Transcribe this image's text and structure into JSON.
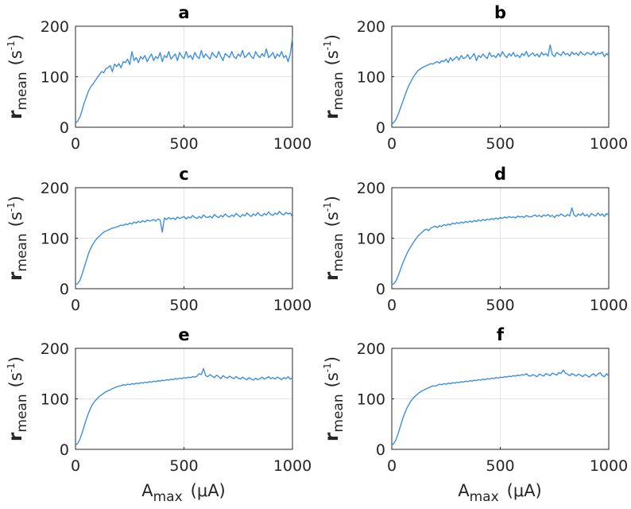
{
  "figure": {
    "xlabel": {
      "main": "A",
      "sub": "max",
      "unit": "(μA)"
    },
    "ylabel": {
      "main": "r",
      "sub": "mean",
      "open": "(s",
      "sup": "-1",
      "close": ")"
    }
  },
  "chart_data": [
    {
      "type": "line",
      "panel": "a",
      "title": "a",
      "xlim": [
        0,
        1000
      ],
      "ylim": [
        0,
        200
      ],
      "xticks": [
        0,
        500,
        1000
      ],
      "yticks": [
        0,
        100,
        200
      ],
      "grid": true,
      "color": "#3b8fe0",
      "x": [
        0,
        10,
        20,
        30,
        40,
        50,
        60,
        70,
        80,
        90,
        100,
        110,
        120,
        130,
        140,
        150,
        160,
        170,
        180,
        190,
        200,
        210,
        220,
        230,
        240,
        250,
        260,
        270,
        280,
        290,
        300,
        310,
        320,
        330,
        340,
        350,
        360,
        370,
        380,
        390,
        400,
        410,
        420,
        430,
        440,
        450,
        460,
        470,
        480,
        490,
        500,
        510,
        520,
        530,
        540,
        550,
        560,
        570,
        580,
        590,
        600,
        610,
        620,
        630,
        640,
        650,
        660,
        670,
        680,
        690,
        700,
        710,
        720,
        730,
        740,
        750,
        760,
        770,
        780,
        790,
        800,
        810,
        820,
        830,
        840,
        850,
        860,
        870,
        880,
        890,
        900,
        910,
        920,
        930,
        940,
        950,
        960,
        970,
        980,
        990,
        1000
      ],
      "values": [
        8,
        12,
        20,
        33,
        48,
        60,
        72,
        80,
        85,
        92,
        98,
        104,
        110,
        108,
        116,
        118,
        122,
        110,
        125,
        120,
        126,
        118,
        130,
        128,
        135,
        124,
        150,
        132,
        138,
        128,
        140,
        135,
        142,
        130,
        138,
        145,
        132,
        140,
        136,
        148,
        130,
        142,
        138,
        150,
        135,
        140,
        145,
        132,
        148,
        140,
        136,
        150,
        138,
        142,
        134,
        148,
        140,
        136,
        152,
        138,
        145,
        140,
        135,
        148,
        142,
        138,
        150,
        140,
        132,
        146,
        142,
        138,
        150,
        140,
        136,
        145,
        140,
        152,
        138,
        142,
        148,
        140,
        136,
        150,
        142,
        138,
        146,
        140,
        155,
        138,
        142,
        148,
        136,
        145,
        140,
        150,
        138,
        142,
        130,
        145,
        178
      ]
    },
    {
      "type": "line",
      "panel": "b",
      "title": "b",
      "xlim": [
        0,
        1000
      ],
      "ylim": [
        0,
        200
      ],
      "xticks": [
        0,
        500,
        1000
      ],
      "yticks": [
        0,
        100,
        200
      ],
      "grid": true,
      "color": "#3b8fe0",
      "x": [
        0,
        10,
        20,
        30,
        40,
        50,
        60,
        70,
        80,
        90,
        100,
        110,
        120,
        130,
        140,
        150,
        160,
        170,
        180,
        190,
        200,
        210,
        220,
        230,
        240,
        250,
        260,
        270,
        280,
        290,
        300,
        310,
        320,
        330,
        340,
        350,
        360,
        370,
        380,
        390,
        400,
        410,
        420,
        430,
        440,
        450,
        460,
        470,
        480,
        490,
        500,
        510,
        520,
        530,
        540,
        550,
        560,
        570,
        580,
        590,
        600,
        610,
        620,
        630,
        640,
        650,
        660,
        670,
        680,
        690,
        700,
        710,
        720,
        730,
        740,
        750,
        760,
        770,
        780,
        790,
        800,
        810,
        820,
        830,
        840,
        850,
        860,
        870,
        880,
        890,
        900,
        910,
        920,
        930,
        940,
        950,
        960,
        970,
        980,
        990,
        1000
      ],
      "values": [
        6,
        10,
        16,
        26,
        38,
        50,
        62,
        74,
        84,
        92,
        100,
        106,
        112,
        115,
        118,
        120,
        122,
        124,
        126,
        125,
        128,
        130,
        127,
        132,
        130,
        135,
        128,
        138,
        132,
        136,
        140,
        133,
        142,
        136,
        138,
        144,
        135,
        140,
        146,
        132,
        142,
        138,
        145,
        140,
        136,
        148,
        140,
        142,
        138,
        146,
        140,
        150,
        142,
        138,
        146,
        141,
        148,
        140,
        143,
        138,
        146,
        142,
        150,
        140,
        144,
        147,
        141,
        145,
        139,
        148,
        143,
        146,
        141,
        163,
        144,
        140,
        148,
        145,
        142,
        150,
        144,
        146,
        141,
        149,
        144,
        147,
        142,
        150,
        145,
        143,
        148,
        146,
        144,
        150,
        142,
        147,
        145,
        149,
        140,
        146,
        142
      ]
    },
    {
      "type": "line",
      "panel": "c",
      "title": "c",
      "xlim": [
        0,
        1000
      ],
      "ylim": [
        0,
        200
      ],
      "xticks": [
        0,
        500,
        1000
      ],
      "yticks": [
        0,
        100,
        200
      ],
      "grid": true,
      "color": "#3b8fe0",
      "x": [
        0,
        10,
        20,
        30,
        40,
        50,
        60,
        70,
        80,
        90,
        100,
        110,
        120,
        130,
        140,
        150,
        160,
        170,
        180,
        190,
        200,
        210,
        220,
        230,
        240,
        250,
        260,
        270,
        280,
        290,
        300,
        310,
        320,
        330,
        340,
        350,
        360,
        370,
        380,
        390,
        400,
        410,
        420,
        430,
        440,
        450,
        460,
        470,
        480,
        490,
        500,
        510,
        520,
        530,
        540,
        550,
        560,
        570,
        580,
        590,
        600,
        610,
        620,
        630,
        640,
        650,
        660,
        670,
        680,
        690,
        700,
        710,
        720,
        730,
        740,
        750,
        760,
        770,
        780,
        790,
        800,
        810,
        820,
        830,
        840,
        850,
        860,
        870,
        880,
        890,
        900,
        910,
        920,
        930,
        940,
        950,
        960,
        970,
        980,
        990,
        1000
      ],
      "values": [
        8,
        10,
        16,
        28,
        42,
        56,
        70,
        80,
        88,
        95,
        100,
        104,
        108,
        112,
        114,
        116,
        118,
        120,
        121,
        122,
        124,
        126,
        125,
        128,
        127,
        130,
        128,
        132,
        130,
        133,
        131,
        135,
        132,
        136,
        134,
        135,
        137,
        134,
        138,
        136,
        112,
        140,
        137,
        141,
        138,
        140,
        137,
        142,
        139,
        141,
        143,
        138,
        142,
        140,
        145,
        141,
        139,
        143,
        140,
        146,
        142,
        141,
        144,
        140,
        147,
        143,
        141,
        145,
        142,
        148,
        144,
        142,
        146,
        143,
        149,
        145,
        142,
        147,
        144,
        150,
        146,
        143,
        148,
        145,
        151,
        146,
        144,
        149,
        146,
        152,
        147,
        145,
        150,
        147,
        153,
        148,
        146,
        151,
        148,
        150,
        142
      ]
    },
    {
      "type": "line",
      "panel": "d",
      "title": "d",
      "xlim": [
        0,
        1000
      ],
      "ylim": [
        0,
        200
      ],
      "xticks": [
        0,
        500,
        1000
      ],
      "yticks": [
        0,
        100,
        200
      ],
      "grid": true,
      "color": "#3b8fe0",
      "x": [
        0,
        10,
        20,
        30,
        40,
        50,
        60,
        70,
        80,
        90,
        100,
        110,
        120,
        130,
        140,
        150,
        160,
        170,
        180,
        190,
        200,
        210,
        220,
        230,
        240,
        250,
        260,
        270,
        280,
        290,
        300,
        310,
        320,
        330,
        340,
        350,
        360,
        370,
        380,
        390,
        400,
        410,
        420,
        430,
        440,
        450,
        460,
        470,
        480,
        490,
        500,
        510,
        520,
        530,
        540,
        550,
        560,
        570,
        580,
        590,
        600,
        610,
        620,
        630,
        640,
        650,
        660,
        670,
        680,
        690,
        700,
        710,
        720,
        730,
        740,
        750,
        760,
        770,
        780,
        790,
        800,
        810,
        820,
        830,
        840,
        850,
        860,
        870,
        880,
        890,
        900,
        910,
        920,
        930,
        940,
        950,
        960,
        970,
        980,
        990,
        1000
      ],
      "values": [
        8,
        10,
        16,
        26,
        38,
        50,
        60,
        70,
        78,
        85,
        92,
        98,
        104,
        108,
        112,
        116,
        118,
        115,
        120,
        122,
        124,
        121,
        125,
        123,
        127,
        125,
        128,
        126,
        130,
        128,
        131,
        129,
        132,
        130,
        133,
        131,
        134,
        132,
        135,
        133,
        136,
        134,
        137,
        135,
        138,
        136,
        139,
        137,
        140,
        138,
        141,
        139,
        142,
        140,
        143,
        141,
        142,
        140,
        144,
        142,
        143,
        141,
        145,
        143,
        142,
        144,
        146,
        143,
        145,
        142,
        146,
        144,
        147,
        143,
        145,
        141,
        146,
        144,
        148,
        145,
        143,
        147,
        144,
        160,
        146,
        143,
        148,
        145,
        150,
        144,
        147,
        142,
        149,
        146,
        144,
        150,
        145,
        148,
        143,
        149,
        146
      ]
    },
    {
      "type": "line",
      "panel": "e",
      "title": "e",
      "xlim": [
        0,
        1000
      ],
      "ylim": [
        0,
        200
      ],
      "xticks": [
        0,
        500,
        1000
      ],
      "yticks": [
        0,
        100,
        200
      ],
      "grid": true,
      "color": "#3b8fe0",
      "x": [
        0,
        10,
        20,
        30,
        40,
        50,
        60,
        70,
        80,
        90,
        100,
        110,
        120,
        130,
        140,
        150,
        160,
        170,
        180,
        190,
        200,
        210,
        220,
        230,
        240,
        250,
        260,
        270,
        280,
        290,
        300,
        310,
        320,
        330,
        340,
        350,
        360,
        370,
        380,
        390,
        400,
        410,
        420,
        430,
        440,
        450,
        460,
        470,
        480,
        490,
        500,
        510,
        520,
        530,
        540,
        550,
        560,
        570,
        580,
        590,
        600,
        610,
        620,
        630,
        640,
        650,
        660,
        670,
        680,
        690,
        700,
        710,
        720,
        730,
        740,
        750,
        760,
        770,
        780,
        790,
        800,
        810,
        820,
        830,
        840,
        850,
        860,
        870,
        880,
        890,
        900,
        910,
        920,
        930,
        940,
        950,
        960,
        970,
        980,
        990,
        1000
      ],
      "values": [
        8,
        12,
        20,
        32,
        46,
        60,
        72,
        82,
        90,
        96,
        100,
        105,
        108,
        111,
        114,
        116,
        118,
        120,
        122,
        124,
        125,
        126,
        128,
        127,
        129,
        128,
        130,
        129,
        131,
        130,
        132,
        131,
        133,
        132,
        134,
        133,
        135,
        134,
        136,
        135,
        137,
        136,
        138,
        137,
        139,
        138,
        140,
        139,
        141,
        140,
        142,
        141,
        143,
        142,
        144,
        143,
        145,
        150,
        148,
        160,
        146,
        144,
        148,
        145,
        142,
        147,
        144,
        140,
        146,
        143,
        141,
        145,
        142,
        140,
        144,
        141,
        139,
        143,
        140,
        138,
        142,
        139,
        137,
        141,
        138,
        140,
        143,
        139,
        141,
        144,
        140,
        142,
        139,
        143,
        141,
        138,
        142,
        140,
        144,
        139,
        142
      ]
    },
    {
      "type": "line",
      "panel": "f",
      "title": "f",
      "xlim": [
        0,
        1000
      ],
      "ylim": [
        0,
        200
      ],
      "xticks": [
        0,
        500,
        1000
      ],
      "yticks": [
        0,
        100,
        200
      ],
      "grid": true,
      "color": "#3b8fe0",
      "x": [
        0,
        10,
        20,
        30,
        40,
        50,
        60,
        70,
        80,
        90,
        100,
        110,
        120,
        130,
        140,
        150,
        160,
        170,
        180,
        190,
        200,
        210,
        220,
        230,
        240,
        250,
        260,
        270,
        280,
        290,
        300,
        310,
        320,
        330,
        340,
        350,
        360,
        370,
        380,
        390,
        400,
        410,
        420,
        430,
        440,
        450,
        460,
        470,
        480,
        490,
        500,
        510,
        520,
        530,
        540,
        550,
        560,
        570,
        580,
        590,
        600,
        610,
        620,
        630,
        640,
        650,
        660,
        670,
        680,
        690,
        700,
        710,
        720,
        730,
        740,
        750,
        760,
        770,
        780,
        790,
        800,
        810,
        820,
        830,
        840,
        850,
        860,
        870,
        880,
        890,
        900,
        910,
        920,
        930,
        940,
        950,
        960,
        970,
        980,
        990,
        1000
      ],
      "values": [
        8,
        12,
        20,
        32,
        46,
        60,
        72,
        82,
        90,
        97,
        102,
        106,
        110,
        113,
        116,
        118,
        120,
        122,
        124,
        126,
        125,
        127,
        129,
        128,
        130,
        129,
        131,
        130,
        132,
        131,
        133,
        132,
        134,
        133,
        135,
        134,
        136,
        135,
        137,
        136,
        138,
        137,
        139,
        138,
        140,
        139,
        141,
        140,
        142,
        141,
        143,
        142,
        144,
        143,
        145,
        144,
        146,
        145,
        147,
        146,
        148,
        147,
        150,
        146,
        145,
        148,
        146,
        144,
        149,
        147,
        145,
        150,
        148,
        146,
        151,
        149,
        147,
        152,
        150,
        157,
        151,
        149,
        146,
        150,
        148,
        145,
        149,
        147,
        144,
        148,
        146,
        143,
        147,
        150,
        145,
        149,
        152,
        146,
        144,
        150,
        145
      ]
    }
  ]
}
